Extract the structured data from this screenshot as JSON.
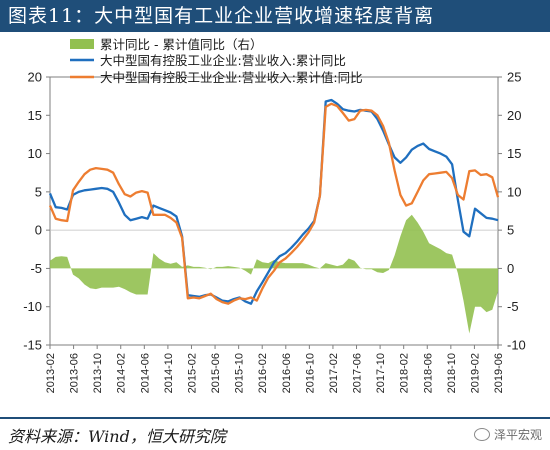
{
  "page": {
    "title": "图表11：大中型国有工业企业营收增速轻度背离",
    "source": "资料来源：Wind，恒大研究院",
    "watermark": "泽平宏观"
  },
  "chart_data": {
    "type": "line",
    "left_axis": {
      "ylim": [
        -15,
        20
      ],
      "ticks": [
        -15,
        -10,
        -5,
        0,
        5,
        10,
        15,
        20
      ]
    },
    "right_axis": {
      "ylim": [
        -10,
        25
      ],
      "ticks": [
        -10,
        -5,
        0,
        5,
        10,
        15,
        20,
        25
      ]
    },
    "x_ticks": [
      "2013-02",
      "2013-06",
      "2013-10",
      "2014-02",
      "2014-06",
      "2014-10",
      "2015-02",
      "2015-06",
      "2015-10",
      "2016-02",
      "2016-06",
      "2016-10",
      "2017-02",
      "2017-06",
      "2017-10",
      "2018-02",
      "2018-06",
      "2018-10",
      "2019-02",
      "2019-06"
    ],
    "legend": [
      {
        "label": "累计同比 - 累计值同比（右）",
        "color": "#92c050",
        "kind": "area"
      },
      {
        "label": "大中型国有控股工业企业:营业收入:累计同比",
        "color": "#1f6fbf",
        "kind": "line"
      },
      {
        "label": "大中型国有控股工业企业:营业收入:累计值:同比",
        "color": "#ed7d31",
        "kind": "line"
      }
    ],
    "series": [
      {
        "name": "大中型国有控股工业企业:营业收入:累计同比",
        "axis": "left",
        "color": "#1f6fbf",
        "points": [
          [
            0,
            4.8
          ],
          [
            1,
            3.0
          ],
          [
            2,
            2.9
          ],
          [
            3,
            2.7
          ],
          [
            4,
            4.6
          ],
          [
            5,
            5.0
          ],
          [
            6,
            5.2
          ],
          [
            7,
            5.3
          ],
          [
            8,
            5.4
          ],
          [
            9,
            5.5
          ],
          [
            10,
            5.4
          ],
          [
            11,
            5.0
          ],
          [
            12,
            3.6
          ],
          [
            13,
            2.0
          ],
          [
            14,
            1.3
          ],
          [
            15,
            1.5
          ],
          [
            16,
            1.7
          ],
          [
            17,
            1.5
          ],
          [
            18,
            3.2
          ],
          [
            19,
            2.9
          ],
          [
            20,
            2.6
          ],
          [
            21,
            2.3
          ],
          [
            22,
            1.8
          ],
          [
            23,
            -0.8
          ],
          [
            24,
            -8.5
          ],
          [
            25,
            -8.6
          ],
          [
            26,
            -8.7
          ],
          [
            27,
            -8.5
          ],
          [
            28,
            -8.4
          ],
          [
            29,
            -8.8
          ],
          [
            30,
            -9.2
          ],
          [
            31,
            -9.3
          ],
          [
            32,
            -9.0
          ],
          [
            33,
            -8.8
          ],
          [
            34,
            -9.3
          ],
          [
            35,
            -9.6
          ],
          [
            36,
            -8.0
          ],
          [
            37,
            -6.8
          ],
          [
            38,
            -5.5
          ],
          [
            39,
            -4.2
          ],
          [
            40,
            -3.4
          ],
          [
            41,
            -3.0
          ],
          [
            42,
            -2.3
          ],
          [
            43,
            -1.5
          ],
          [
            44,
            -0.6
          ],
          [
            45,
            0.2
          ],
          [
            46,
            1.2
          ],
          [
            47,
            4.5
          ],
          [
            48,
            16.8
          ],
          [
            49,
            17.0
          ],
          [
            50,
            16.5
          ],
          [
            51,
            15.8
          ],
          [
            52,
            15.6
          ],
          [
            53,
            15.5
          ],
          [
            54,
            15.7
          ],
          [
            55,
            15.6
          ],
          [
            56,
            15.5
          ],
          [
            57,
            14.5
          ],
          [
            58,
            13.0
          ],
          [
            59,
            11.2
          ],
          [
            60,
            9.5
          ],
          [
            61,
            8.8
          ],
          [
            62,
            9.5
          ],
          [
            63,
            10.5
          ],
          [
            64,
            11.0
          ],
          [
            65,
            11.3
          ],
          [
            66,
            10.6
          ],
          [
            67,
            10.3
          ],
          [
            68,
            10.0
          ],
          [
            69,
            9.6
          ],
          [
            70,
            8.6
          ],
          [
            71,
            4.0
          ],
          [
            72,
            -0.2
          ],
          [
            73,
            -0.8
          ],
          [
            74,
            2.8
          ],
          [
            75,
            2.2
          ],
          [
            76,
            1.6
          ],
          [
            77,
            1.5
          ],
          [
            78,
            1.3
          ]
        ]
      },
      {
        "name": "大中型国有控股工业企业:营业收入:累计值:同比",
        "axis": "left",
        "color": "#ed7d31",
        "points": [
          [
            0,
            3.2
          ],
          [
            1,
            1.5
          ],
          [
            2,
            1.3
          ],
          [
            3,
            1.2
          ],
          [
            4,
            5.2
          ],
          [
            5,
            6.3
          ],
          [
            6,
            7.3
          ],
          [
            7,
            7.9
          ],
          [
            8,
            8.1
          ],
          [
            9,
            8.0
          ],
          [
            10,
            7.9
          ],
          [
            11,
            7.5
          ],
          [
            12,
            6.0
          ],
          [
            13,
            4.7
          ],
          [
            14,
            4.4
          ],
          [
            15,
            4.9
          ],
          [
            16,
            5.1
          ],
          [
            17,
            4.9
          ],
          [
            18,
            2.0
          ],
          [
            19,
            2.0
          ],
          [
            20,
            2.0
          ],
          [
            21,
            1.6
          ],
          [
            22,
            1.0
          ],
          [
            23,
            -1.0
          ],
          [
            24,
            -8.9
          ],
          [
            25,
            -8.8
          ],
          [
            26,
            -8.9
          ],
          [
            27,
            -8.6
          ],
          [
            28,
            -8.3
          ],
          [
            29,
            -9.0
          ],
          [
            30,
            -9.4
          ],
          [
            31,
            -9.6
          ],
          [
            32,
            -9.2
          ],
          [
            33,
            -8.9
          ],
          [
            34,
            -9.0
          ],
          [
            35,
            -8.8
          ],
          [
            36,
            -9.2
          ],
          [
            37,
            -7.6
          ],
          [
            38,
            -6.2
          ],
          [
            39,
            -5.3
          ],
          [
            40,
            -4.2
          ],
          [
            41,
            -3.7
          ],
          [
            42,
            -3.0
          ],
          [
            43,
            -2.2
          ],
          [
            44,
            -1.3
          ],
          [
            45,
            -0.3
          ],
          [
            46,
            1.0
          ],
          [
            47,
            4.5
          ],
          [
            48,
            16.1
          ],
          [
            49,
            16.5
          ],
          [
            50,
            16.2
          ],
          [
            51,
            15.3
          ],
          [
            52,
            14.3
          ],
          [
            53,
            14.5
          ],
          [
            54,
            15.6
          ],
          [
            55,
            15.7
          ],
          [
            56,
            15.6
          ],
          [
            57,
            15.0
          ],
          [
            58,
            13.6
          ],
          [
            59,
            11.4
          ],
          [
            60,
            7.8
          ],
          [
            61,
            4.6
          ],
          [
            62,
            3.2
          ],
          [
            63,
            3.5
          ],
          [
            64,
            5.0
          ],
          [
            65,
            6.5
          ],
          [
            66,
            7.3
          ],
          [
            67,
            7.4
          ],
          [
            68,
            7.5
          ],
          [
            69,
            7.6
          ],
          [
            70,
            6.8
          ],
          [
            71,
            4.6
          ],
          [
            72,
            4.0
          ],
          [
            73,
            7.7
          ],
          [
            74,
            7.8
          ],
          [
            75,
            7.2
          ],
          [
            76,
            7.3
          ],
          [
            77,
            6.9
          ],
          [
            78,
            4.3
          ]
        ]
      },
      {
        "name": "累计同比 - 累计值同比（右）",
        "axis": "right",
        "color": "#92c050",
        "points": [
          [
            0,
            1.0
          ],
          [
            1,
            1.5
          ],
          [
            2,
            1.6
          ],
          [
            3,
            1.5
          ],
          [
            4,
            -0.8
          ],
          [
            5,
            -1.3
          ],
          [
            6,
            -2.1
          ],
          [
            7,
            -2.6
          ],
          [
            8,
            -2.7
          ],
          [
            9,
            -2.5
          ],
          [
            10,
            -2.5
          ],
          [
            11,
            -2.5
          ],
          [
            12,
            -2.4
          ],
          [
            13,
            -2.7
          ],
          [
            14,
            -3.1
          ],
          [
            15,
            -3.4
          ],
          [
            16,
            -3.4
          ],
          [
            17,
            -3.4
          ],
          [
            18,
            2.0
          ],
          [
            19,
            1.3
          ],
          [
            20,
            0.8
          ],
          [
            21,
            0.6
          ],
          [
            22,
            0.8
          ],
          [
            23,
            0.2
          ],
          [
            24,
            0.4
          ],
          [
            25,
            0.2
          ],
          [
            26,
            0.2
          ],
          [
            27,
            0.1
          ],
          [
            28,
            -0.1
          ],
          [
            29,
            0.2
          ],
          [
            30,
            0.2
          ],
          [
            31,
            0.3
          ],
          [
            32,
            0.2
          ],
          [
            33,
            0.1
          ],
          [
            34,
            -0.3
          ],
          [
            35,
            -0.8
          ],
          [
            36,
            1.2
          ],
          [
            37,
            0.8
          ],
          [
            38,
            0.7
          ],
          [
            39,
            1.1
          ],
          [
            40,
            0.8
          ],
          [
            41,
            0.7
          ],
          [
            42,
            0.7
          ],
          [
            43,
            0.7
          ],
          [
            44,
            0.7
          ],
          [
            45,
            0.5
          ],
          [
            46,
            0.2
          ],
          [
            47,
            0.0
          ],
          [
            48,
            0.7
          ],
          [
            49,
            0.5
          ],
          [
            50,
            0.3
          ],
          [
            51,
            0.5
          ],
          [
            52,
            1.3
          ],
          [
            53,
            1.0
          ],
          [
            54,
            0.1
          ],
          [
            55,
            -0.1
          ],
          [
            56,
            -0.1
          ],
          [
            57,
            -0.5
          ],
          [
            58,
            -0.6
          ],
          [
            59,
            -0.2
          ],
          [
            60,
            1.7
          ],
          [
            61,
            4.2
          ],
          [
            62,
            6.3
          ],
          [
            63,
            7.0
          ],
          [
            64,
            6.0
          ],
          [
            65,
            4.8
          ],
          [
            66,
            3.3
          ],
          [
            67,
            2.9
          ],
          [
            68,
            2.5
          ],
          [
            69,
            2.0
          ],
          [
            70,
            1.8
          ],
          [
            71,
            -0.6
          ],
          [
            72,
            -4.2
          ],
          [
            73,
            -8.5
          ],
          [
            74,
            -5.0
          ],
          [
            75,
            -5.0
          ],
          [
            76,
            -5.7
          ],
          [
            77,
            -5.4
          ],
          [
            78,
            -3.0
          ]
        ]
      }
    ]
  }
}
